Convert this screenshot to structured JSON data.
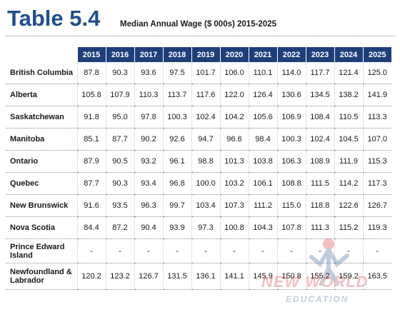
{
  "header": {
    "table_number": "Table 5.4",
    "title": "Median Annual Wage ($ 000s) 2015-2025"
  },
  "table": {
    "years": [
      "2015",
      "2016",
      "2017",
      "2018",
      "2019",
      "2020",
      "2021",
      "2022",
      "2023",
      "2024",
      "2025"
    ],
    "rows": [
      {
        "province": "British Columbia",
        "values": [
          "87.8",
          "90.3",
          "93.6",
          "97.5",
          "101.7",
          "106.0",
          "110.1",
          "114.0",
          "117.7",
          "121.4",
          "125.0"
        ]
      },
      {
        "province": "Alberta",
        "values": [
          "105.8",
          "107.9",
          "110.3",
          "113.7",
          "117.6",
          "122.0",
          "126.4",
          "130.6",
          "134.5",
          "138.2",
          "141.9"
        ]
      },
      {
        "province": "Saskatchewan",
        "values": [
          "91.8",
          "95.0",
          "97.8",
          "100.3",
          "102.4",
          "104.2",
          "105.6",
          "106.9",
          "108.4",
          "110.5",
          "113.3"
        ]
      },
      {
        "province": "Manitoba",
        "values": [
          "85.1",
          "87.7",
          "90.2",
          "92.6",
          "94.7",
          "96.6",
          "98.4",
          "100.3",
          "102.4",
          "104.5",
          "107.0"
        ]
      },
      {
        "province": "Ontario",
        "values": [
          "87.9",
          "90.5",
          "93.2",
          "96.1",
          "98.8",
          "101.3",
          "103.8",
          "106.3",
          "108.9",
          "111.9",
          "115.3"
        ]
      },
      {
        "province": "Quebec",
        "values": [
          "87.7",
          "90.3",
          "93.4",
          "96.8",
          "100.0",
          "103.2",
          "106.1",
          "108.8",
          "111.5",
          "114.2",
          "117.3"
        ]
      },
      {
        "province": "New Brunswick",
        "values": [
          "91.6",
          "93.5",
          "96.3",
          "99.7",
          "103.4",
          "107.3",
          "111.2",
          "115.0",
          "118.8",
          "122.6",
          "126.7"
        ]
      },
      {
        "province": "Nova Scotia",
        "values": [
          "84.4",
          "87.2",
          "90.4",
          "93.9",
          "97.3",
          "100.8",
          "104.3",
          "107.8",
          "111.3",
          "115.2",
          "119.3"
        ]
      },
      {
        "province": "Prince Edward Island",
        "values": [
          "-",
          "-",
          "-",
          "-",
          "-",
          "-",
          "-",
          "-",
          "-",
          "-",
          "-"
        ]
      },
      {
        "province": "Newfoundland & Labrador",
        "values": [
          "120.2",
          "123.2",
          "126.7",
          "131.5",
          "136.1",
          "141.1",
          "145.9",
          "150.8",
          "155.2",
          "159.2",
          "163.5"
        ]
      }
    ]
  },
  "watermark": {
    "line1": "NEW WORLD",
    "line2": "EDUCATION",
    "icon": "figure-silhouette-icon"
  },
  "colors": {
    "brand_blue": "#1f4e8c",
    "header_fill": "#1f3f7a",
    "watermark_red": "#d62020"
  }
}
